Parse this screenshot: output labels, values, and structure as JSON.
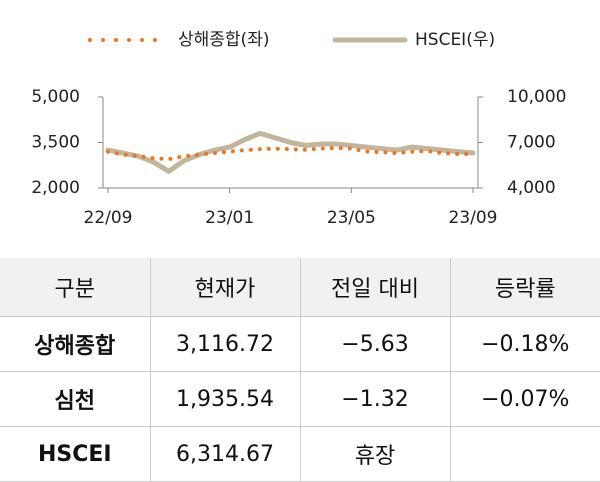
{
  "chart_data": {
    "type": "line",
    "categories": [
      "22/09",
      null,
      null,
      null,
      null,
      null,
      null,
      null,
      "23/01",
      null,
      null,
      null,
      null,
      null,
      null,
      null,
      "23/05",
      null,
      null,
      null,
      null,
      null,
      null,
      null,
      "23/09"
    ],
    "series": [
      {
        "name": "상해종합(좌)",
        "color": "#e87722",
        "style": "dotted",
        "values": [
          3200,
          3100,
          3050,
          2980,
          2950,
          3050,
          3100,
          3150,
          3200,
          3250,
          3280,
          3300,
          3280,
          3260,
          3300,
          3320,
          3300,
          3200,
          3180,
          3150,
          3200,
          3220,
          3150,
          3120,
          3117
        ]
      },
      {
        "name": "HSCEI(우)",
        "color": "#c2b59b",
        "style": "solid",
        "axis": "y2",
        "values": [
          6500,
          6300,
          6100,
          5700,
          5100,
          5800,
          6200,
          6500,
          6700,
          7200,
          7600,
          7300,
          7000,
          6800,
          6900,
          6900,
          6800,
          6700,
          6600,
          6500,
          6700,
          6600,
          6500,
          6400,
          6315
        ]
      }
    ],
    "ylim": [
      2000,
      5000
    ],
    "yticks": [
      {
        "value": 2000,
        "label": "2,000"
      },
      {
        "value": 3500,
        "label": "3,500"
      },
      {
        "value": 5000,
        "label": "5,000"
      }
    ],
    "y2lim": [
      4000,
      10000
    ],
    "y2ticks": [
      {
        "value": 4000,
        "label": "4,000"
      },
      {
        "value": 7000,
        "label": "7,000"
      },
      {
        "value": 10000,
        "label": "10,000"
      }
    ]
  },
  "table": {
    "header": [
      "구분",
      "현재가",
      "전일 대비",
      "등락률"
    ],
    "rows": [
      [
        "상해종합",
        "3,116.72",
        "−5.63",
        "−0.18%"
      ],
      [
        "심천",
        "1,935.54",
        "−1.32",
        "−0.07%"
      ],
      [
        "HSCEI",
        "6,314.67",
        "휴장"
      ]
    ]
  }
}
